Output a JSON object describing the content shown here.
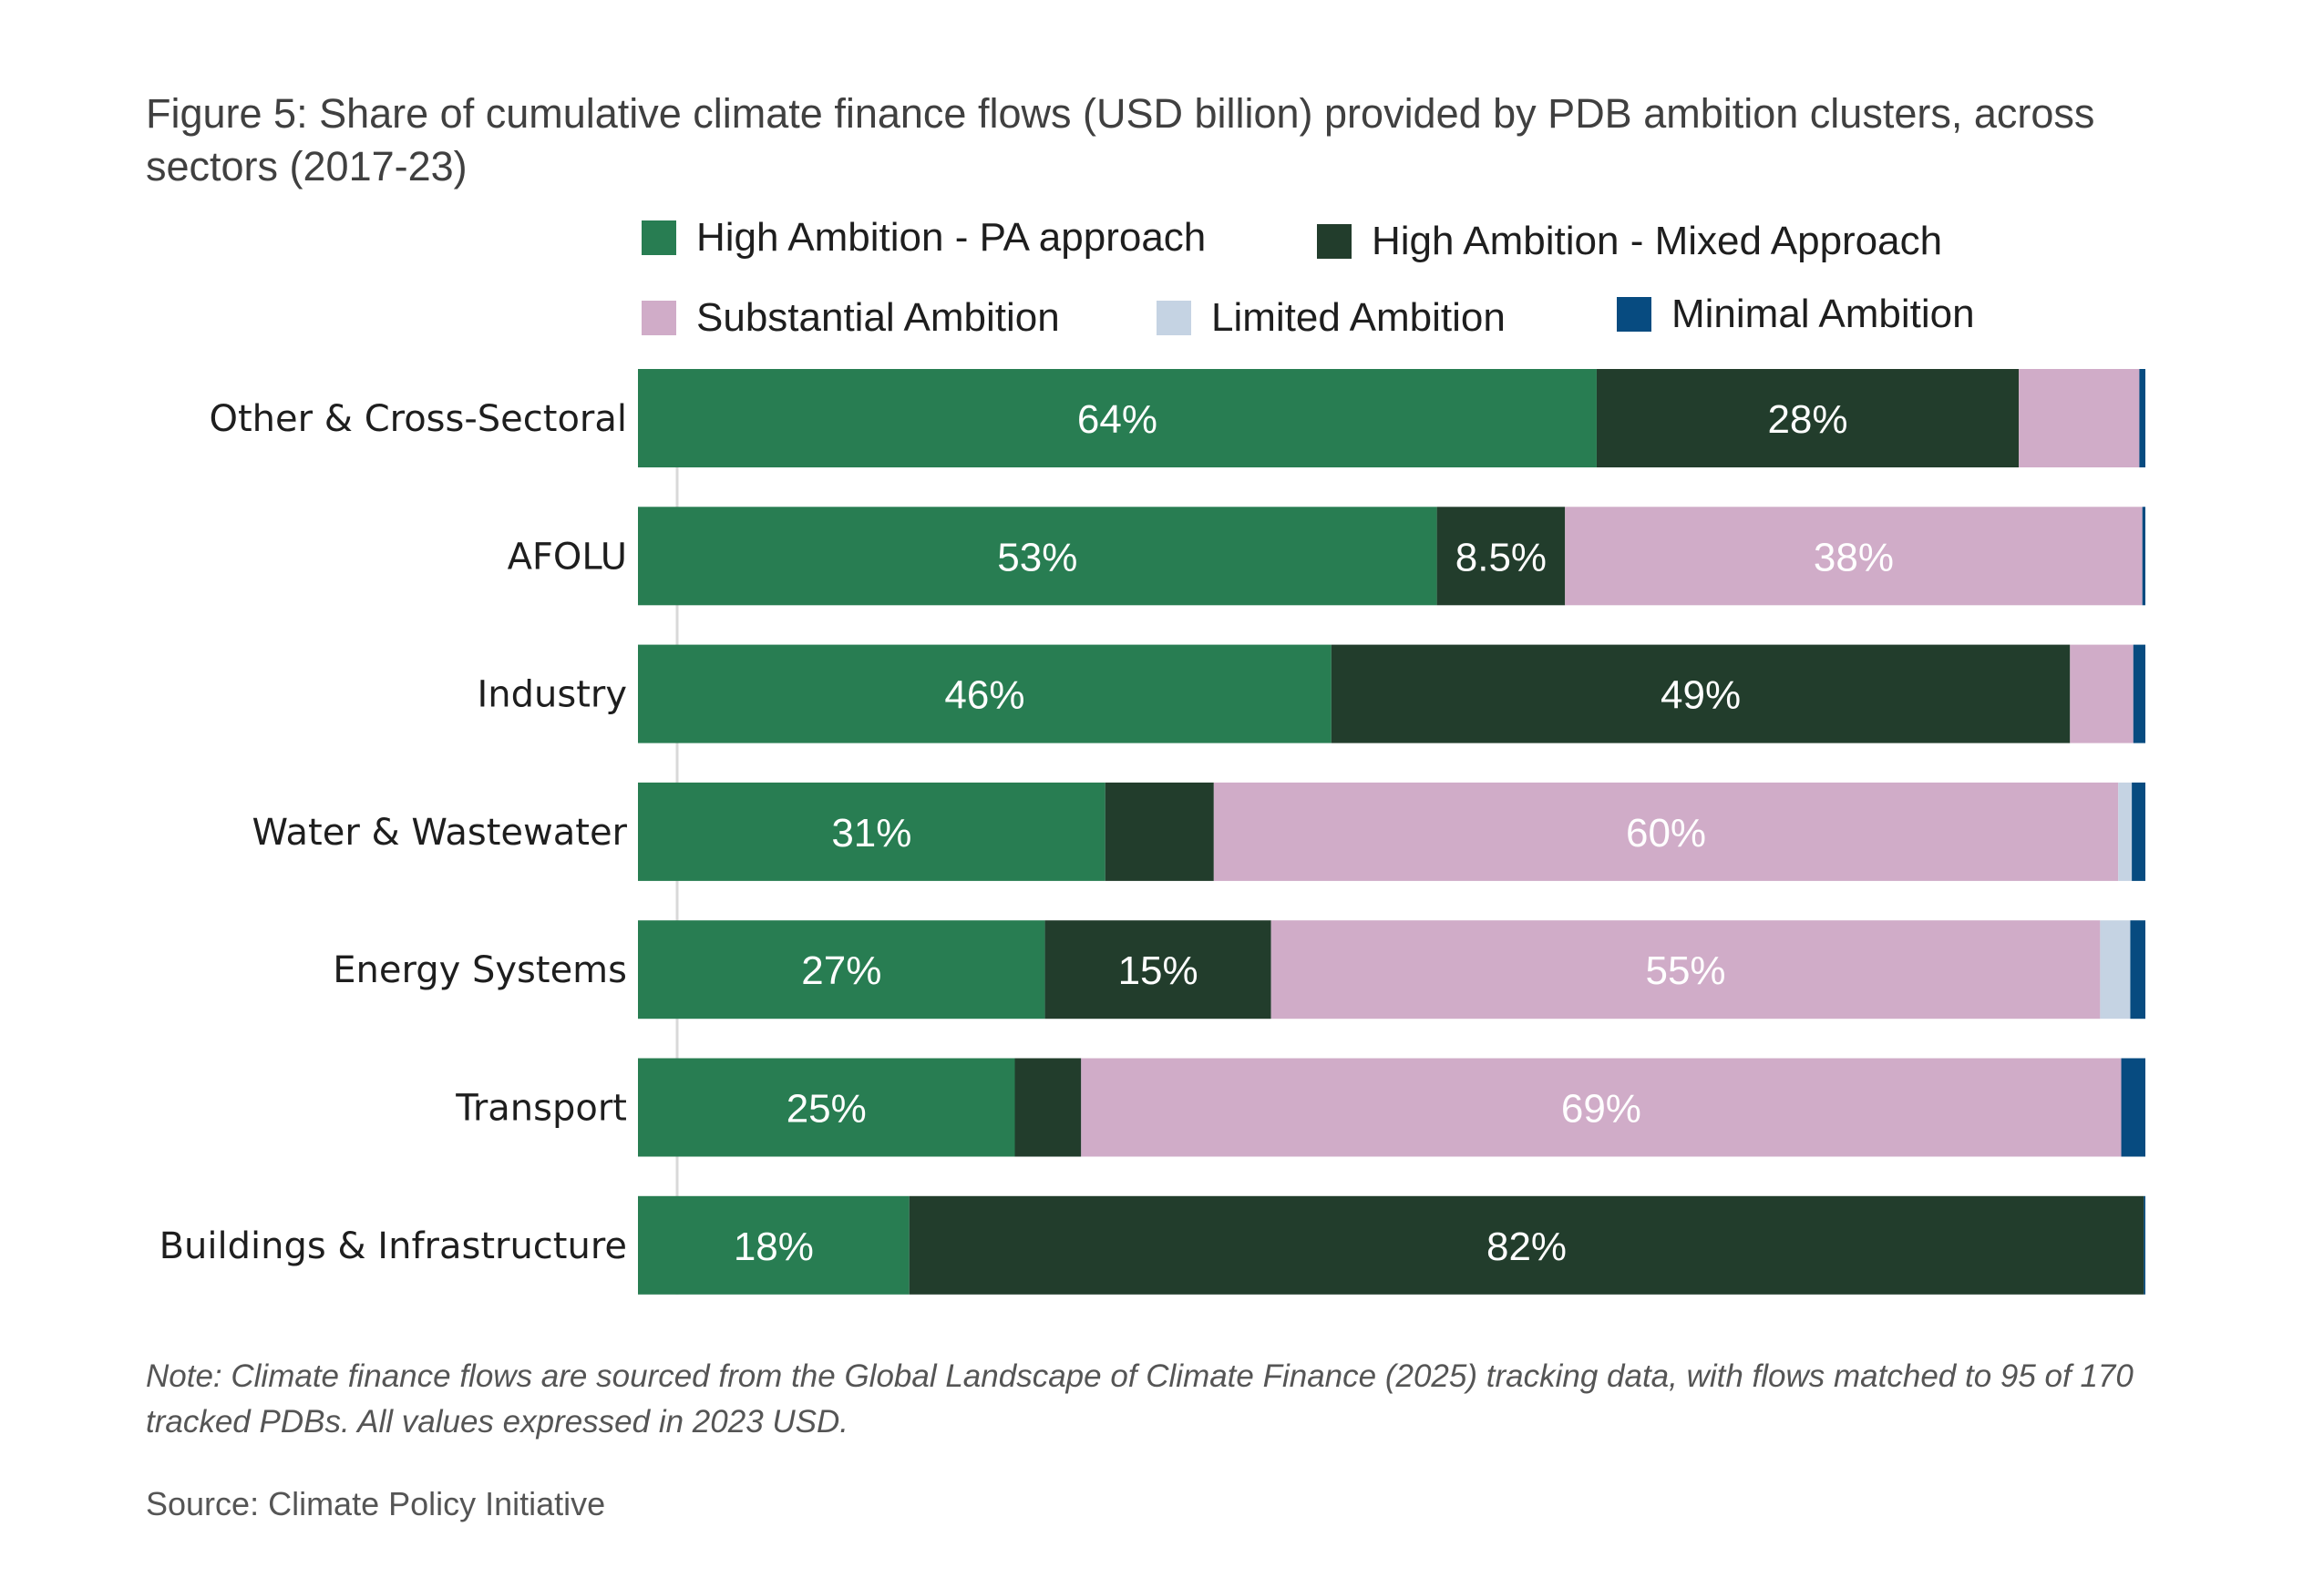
{
  "chart_data": {
    "type": "bar",
    "orientation": "horizontal",
    "stacked": true,
    "normalized_percent": true,
    "title": "Figure 5: Share of cumulative climate finance flows (USD billion) provided by PDB ambition clusters, across sectors (2017-23)",
    "xlabel": "",
    "ylabel": "",
    "xlim": [
      0,
      100
    ],
    "grid": false,
    "legend_position": "top",
    "categories": [
      "Other  & Cross-Sectoral",
      "AFOLU",
      "Industry",
      "Water & Wastewater",
      "Energy Systems",
      "Transport",
      "Buildings & Infrastructure"
    ],
    "series": [
      {
        "name": "High Ambition - PA approach",
        "color": "#287d52",
        "values": [
          63.6,
          53,
          46,
          31,
          27,
          25,
          18
        ],
        "labels": [
          "64%",
          "53%",
          "46%",
          "31%",
          "27%",
          "25%",
          "18%"
        ]
      },
      {
        "name": "High Ambition - Mixed Approach",
        "color": "#223d2c",
        "values": [
          28,
          8.5,
          49,
          7.2,
          15,
          4.4,
          81.9
        ],
        "labels": [
          "28%",
          "8.5%",
          "49%",
          "",
          "15%",
          "",
          "82%"
        ]
      },
      {
        "name": "Substantial Ambition",
        "color": "#d0acc8",
        "values": [
          8,
          38.3,
          4.2,
          60,
          55,
          69,
          0
        ],
        "labels": [
          "",
          "38%",
          "",
          "60%",
          "55%",
          "69%",
          ""
        ]
      },
      {
        "name": "Limited Ambition",
        "color": "#c5d3e3",
        "values": [
          0,
          0,
          0,
          0.9,
          2,
          0,
          0
        ],
        "labels": [
          "",
          "",
          "",
          "",
          "",
          "",
          ""
        ]
      },
      {
        "name": "Minimal Ambition",
        "color": "#074b80",
        "values": [
          0.4,
          0.2,
          0.8,
          0.9,
          1,
          1.6,
          0.1
        ],
        "labels": [
          "",
          "",
          "",
          "",
          "",
          "",
          ""
        ]
      }
    ]
  },
  "legend": [
    {
      "label": "High Ambition - PA approach",
      "color": "#287d52"
    },
    {
      "label": "High Ambition - Mixed Approach",
      "color": "#223d2c"
    },
    {
      "label": "Substantial Ambition",
      "color": "#d0acc8"
    },
    {
      "label": "Limited Ambition",
      "color": "#c5d3e3"
    },
    {
      "label": "Minimal Ambition",
      "color": "#074b80"
    }
  ],
  "note": "Note: Climate finance flows are sourced from the Global Landscape of Climate Finance (2025) tracking data, with flows matched to 95 of 170 tracked PDBs. All values expressed in 2023 USD.",
  "source": "Source: Climate Policy Initiative"
}
